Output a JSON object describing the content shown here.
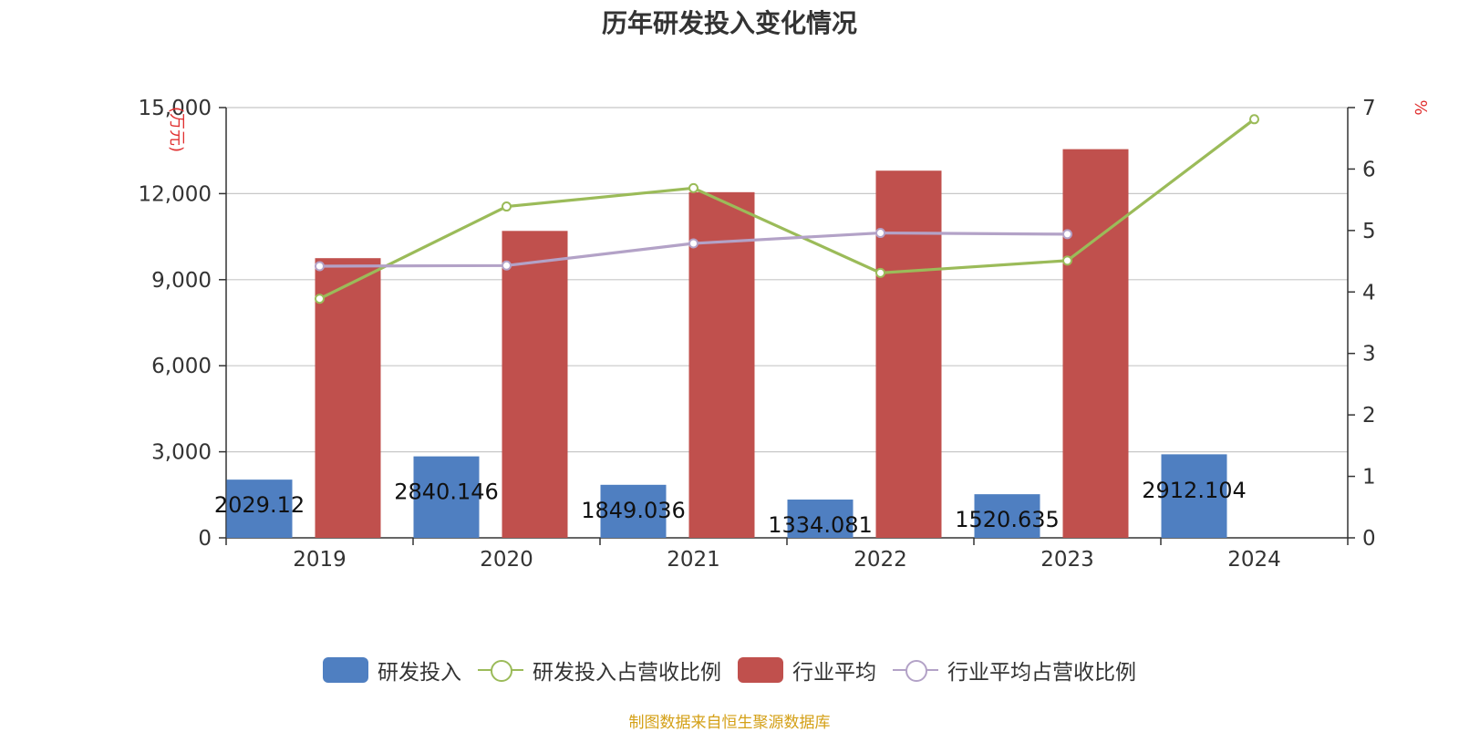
{
  "chart_data": {
    "type": "bar",
    "title": "历年研发投入变化情况",
    "categories": [
      "2019",
      "2020",
      "2021",
      "2022",
      "2023",
      "2024"
    ],
    "y_left": {
      "label": "万元",
      "min": 0,
      "max": 15000,
      "ticks": [
        "0",
        "3,000",
        "6,000",
        "9,000",
        "12,000",
        "15,000"
      ]
    },
    "y_right": {
      "label": "%",
      "min": 0,
      "max": 7,
      "ticks": [
        "0",
        "1",
        "2",
        "3",
        "4",
        "5",
        "6",
        "7"
      ]
    },
    "series": [
      {
        "name": "研发投入",
        "type": "bar",
        "axis": "left",
        "color": "#4f7fc1",
        "values": [
          2029.12,
          2840.146,
          1849.036,
          1334.081,
          1520.635,
          2912.104
        ],
        "labels": [
          "2029.12",
          "2840.146",
          "1849.036",
          "1334.081",
          "1520.635",
          "2912.104"
        ]
      },
      {
        "name": "研发投入占营收比例",
        "type": "line",
        "axis": "right",
        "color": "#9bbb59",
        "values": [
          3.89,
          5.39,
          5.69,
          4.31,
          4.51,
          6.81
        ]
      },
      {
        "name": "行业平均",
        "type": "bar",
        "axis": "left",
        "color": "#c0504d",
        "values": [
          9750,
          10700,
          12050,
          12800,
          13550,
          null
        ]
      },
      {
        "name": "行业平均占营收比例",
        "type": "line",
        "axis": "right",
        "color": "#b3a2c7",
        "values": [
          4.42,
          4.43,
          4.79,
          4.96,
          4.94,
          null
        ]
      }
    ],
    "grid": true,
    "legend_position": "bottom"
  },
  "source": "制图数据来自恒生聚源数据库"
}
